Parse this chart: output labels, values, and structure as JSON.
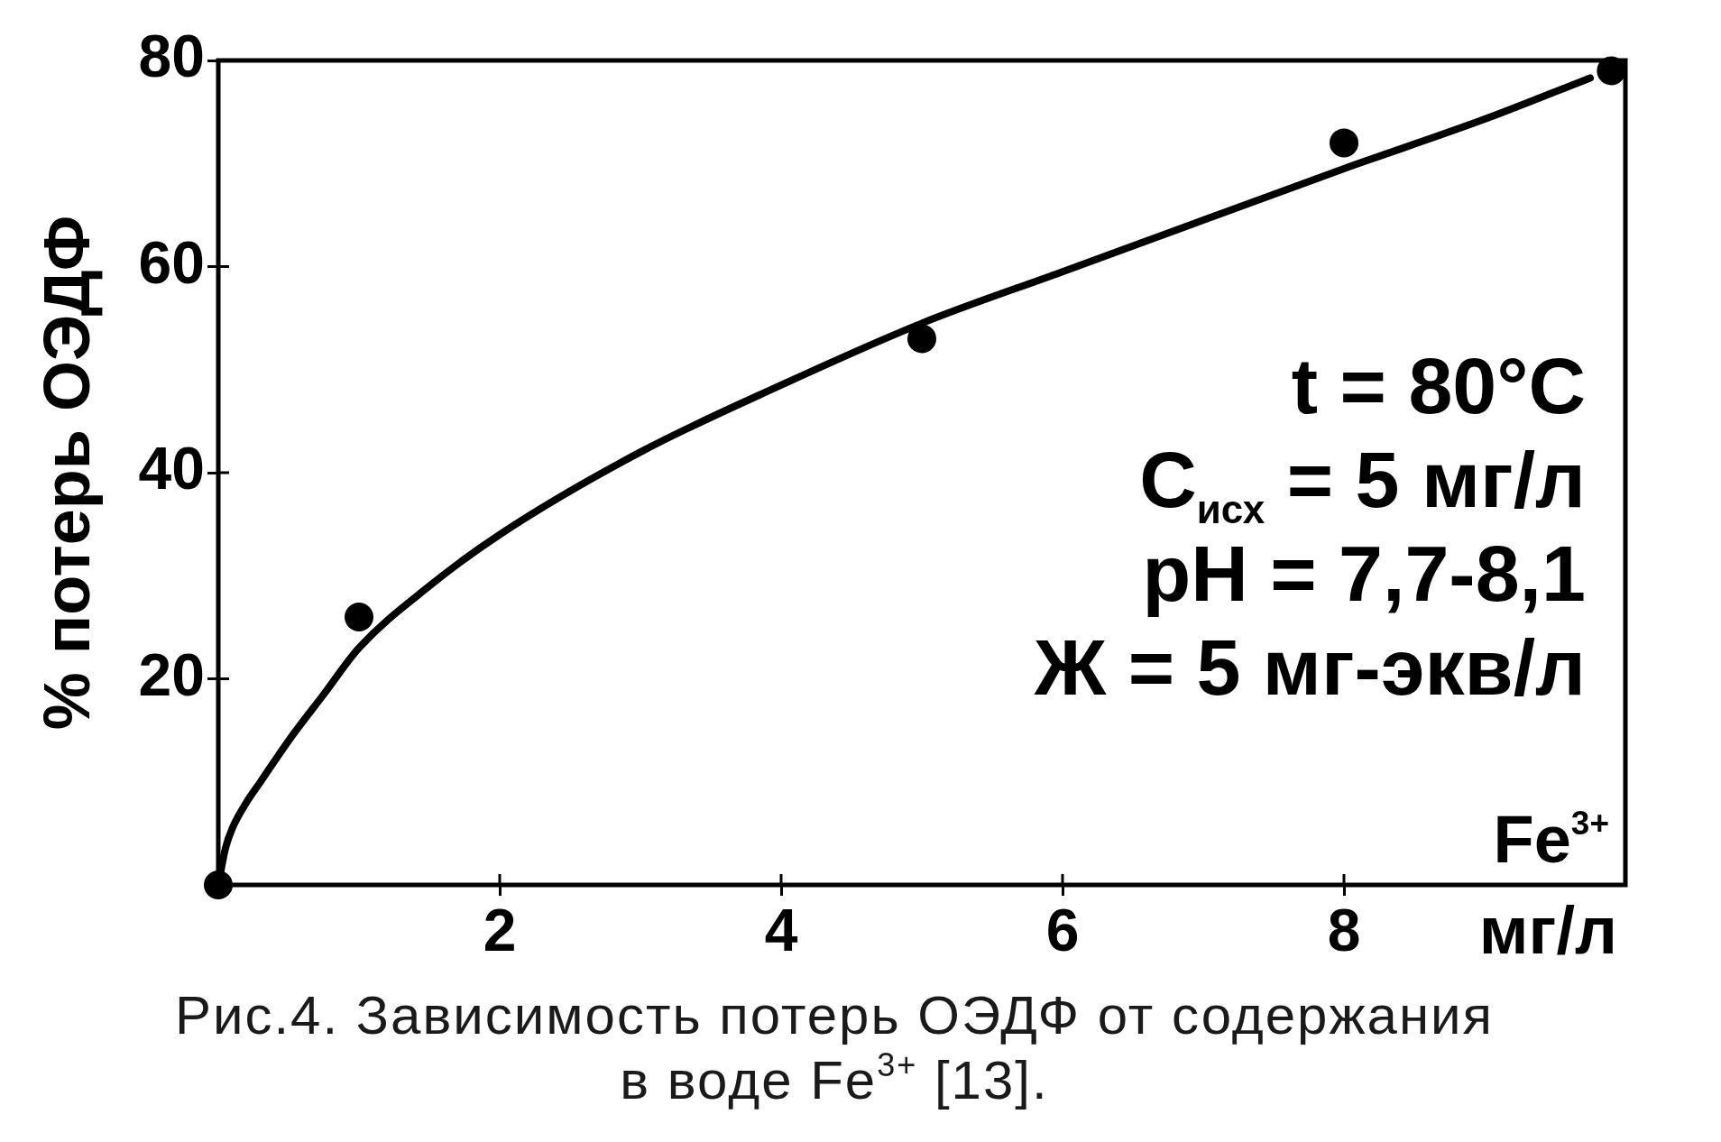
{
  "chart_data": {
    "type": "scatter",
    "title": "Рис.4. Зависимость потерь ОЭДФ от содержания в воде Fe$^{3+}$ [13].",
    "xlabel": "Fe$^{3+}$",
    "ylabel": "% потерь ОЭДФ",
    "annotations": [
      "t = 80°C",
      "C$_{исх}$ = 5 мг/л",
      "pH = 7,7-8,1",
      "Ж = 5 мг-экв/л",
      "мг/л"
    ],
    "series": [
      {
        "color": "#000000",
        "marker": "circle",
        "x": [
          0,
          1,
          5,
          8,
          9.9
        ],
        "values": [
          0,
          26,
          53,
          72,
          79
        ]
      },
      {
        "type": "line",
        "color": "#000000",
        "marker": "none",
        "line_style": "solid",
        "x": [
          0,
          0.05,
          0.1,
          0.2,
          0.3,
          0.5,
          0.75,
          1,
          1.5,
          2,
          3,
          4,
          5,
          6,
          7,
          8,
          9,
          9.75
        ],
        "values": [
          0,
          3.5,
          5.5,
          8,
          10,
          14,
          18.5,
          23,
          29,
          34,
          42,
          48.5,
          54.5,
          59.5,
          64.5,
          69.5,
          74.3,
          78.3
        ]
      }
    ],
    "xlim": [
      0,
      10
    ],
    "xticks": [
      2,
      4,
      6,
      8
    ],
    "ylim": [
      0,
      80
    ],
    "yticks": [
      20,
      40,
      60,
      80
    ],
    "grid": false,
    "legend": false
  }
}
